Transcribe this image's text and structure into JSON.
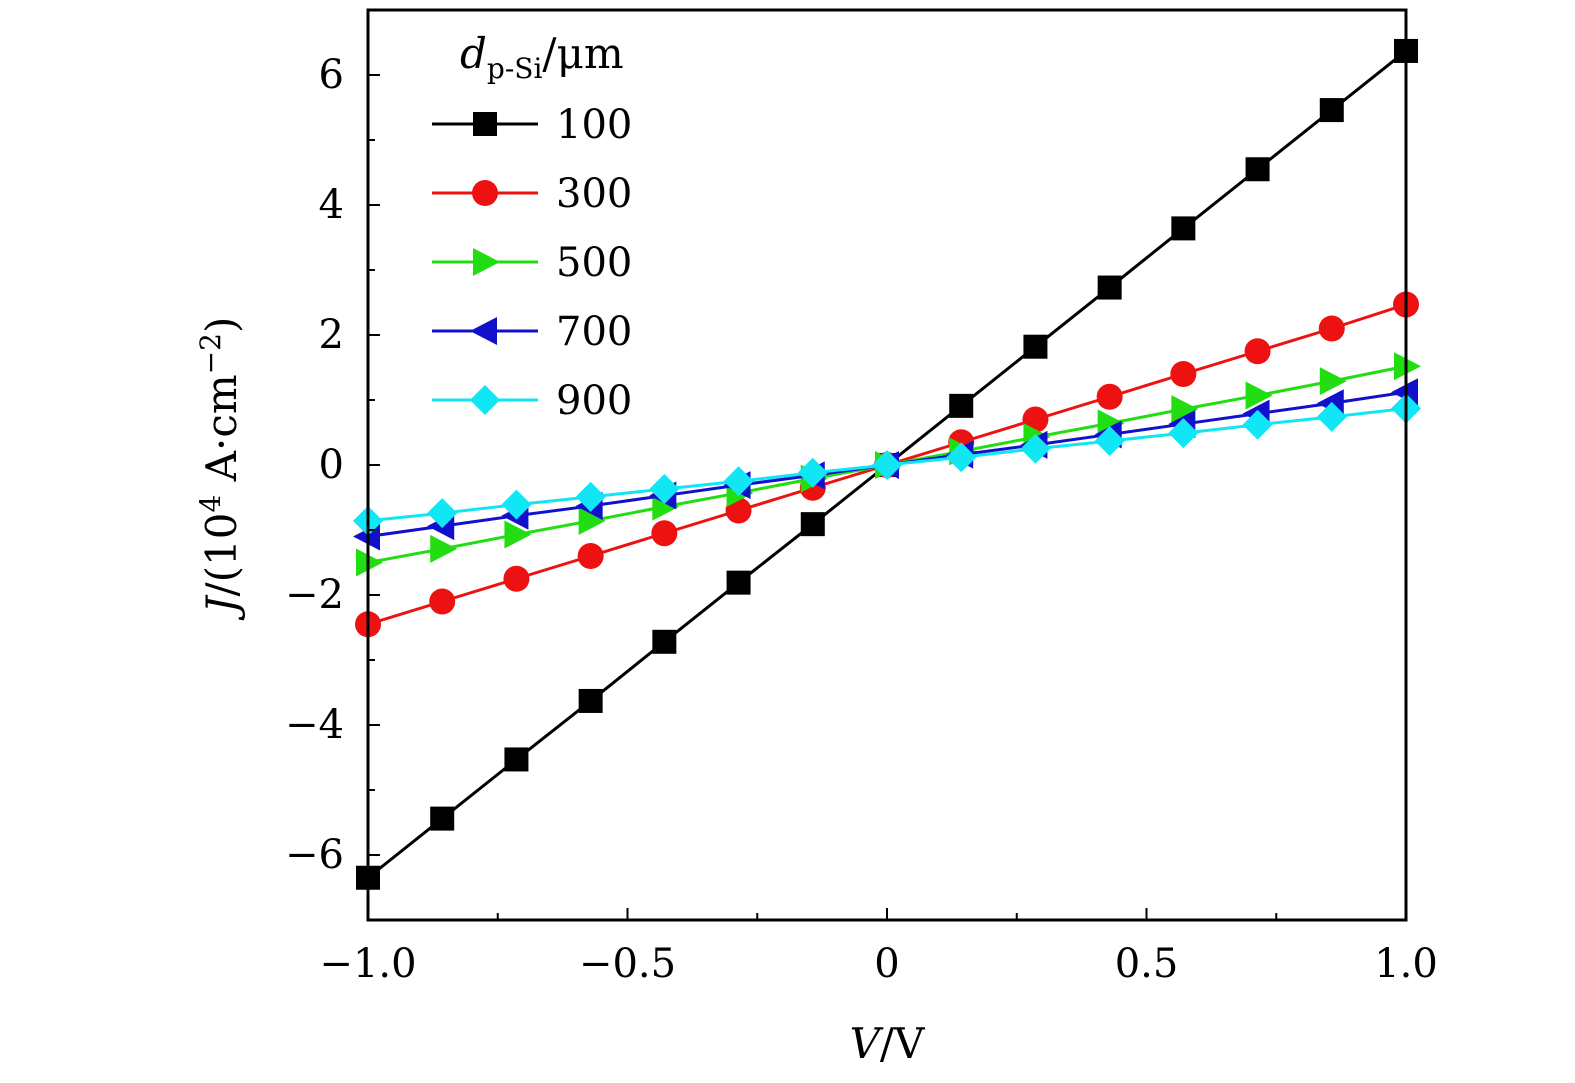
{
  "chart_data": {
    "type": "line",
    "title": "",
    "xlabel": {
      "var": "V",
      "rest": "/V"
    },
    "ylabel": {
      "var": "J",
      "pre": "/(10",
      "exp": "4",
      "mid": " A·cm",
      "exp2": "−2",
      "post": ")"
    },
    "xlim": [
      -1.0,
      1.0
    ],
    "ylim": [
      -7.0,
      7.0
    ],
    "x_ticks": [
      -1.0,
      -0.5,
      0,
      0.5,
      1.0
    ],
    "x_tick_labels": [
      "−1.0",
      "−0.5",
      "0",
      "0.5",
      "1.0"
    ],
    "y_ticks": [
      -6,
      -4,
      -2,
      0,
      2,
      4,
      6
    ],
    "y_tick_labels": [
      "−6",
      "−4",
      "−2",
      "0",
      "2",
      "4",
      "6"
    ],
    "grid": false,
    "legend": {
      "position": "top-left",
      "title_var": "d",
      "title_sub": "p-Si",
      "title_unit": "/μm"
    },
    "x": [
      -1.0,
      -0.857,
      -0.714,
      -0.571,
      -0.429,
      -0.286,
      -0.143,
      0.0,
      0.143,
      0.286,
      0.429,
      0.571,
      0.714,
      0.857,
      1.0
    ],
    "series": [
      {
        "name": "100",
        "color": "#000000",
        "marker": "square",
        "values": [
          -6.35,
          -5.44,
          -4.53,
          -3.63,
          -2.72,
          -1.81,
          -0.91,
          0.0,
          0.91,
          1.82,
          2.73,
          3.64,
          4.55,
          5.46,
          6.37
        ]
      },
      {
        "name": "300",
        "color": "#ee1111",
        "marker": "circle",
        "values": [
          -2.45,
          -2.1,
          -1.75,
          -1.4,
          -1.05,
          -0.7,
          -0.35,
          0.0,
          0.35,
          0.7,
          1.05,
          1.4,
          1.75,
          2.1,
          2.47
        ]
      },
      {
        "name": "500",
        "color": "#22dd11",
        "marker": "triangle-right",
        "values": [
          -1.5,
          -1.29,
          -1.07,
          -0.86,
          -0.64,
          -0.43,
          -0.21,
          0.0,
          0.21,
          0.43,
          0.64,
          0.86,
          1.07,
          1.29,
          1.52
        ]
      },
      {
        "name": "700",
        "color": "#1111cc",
        "marker": "triangle-left",
        "values": [
          -1.1,
          -0.94,
          -0.78,
          -0.63,
          -0.47,
          -0.31,
          -0.16,
          0.0,
          0.16,
          0.31,
          0.47,
          0.63,
          0.79,
          0.95,
          1.12
        ]
      },
      {
        "name": "900",
        "color": "#11e6f5",
        "marker": "diamond",
        "values": [
          -0.86,
          -0.74,
          -0.61,
          -0.49,
          -0.37,
          -0.25,
          -0.12,
          0.0,
          0.12,
          0.25,
          0.37,
          0.49,
          0.62,
          0.74,
          0.87
        ]
      }
    ]
  }
}
